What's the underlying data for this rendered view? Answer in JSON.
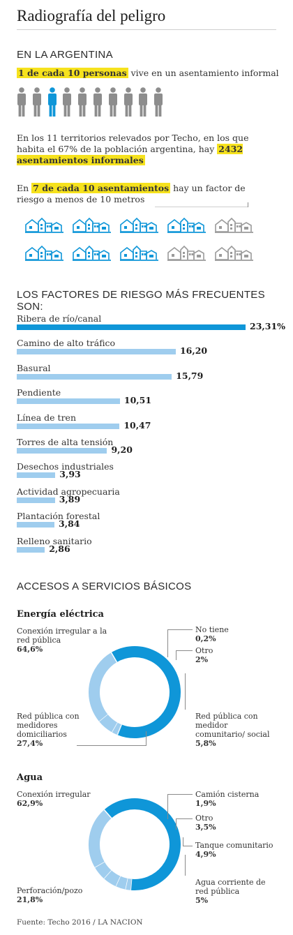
{
  "title": "Radiografía del peligro",
  "section_argentina": "EN LA ARGENTINA",
  "people": {
    "highlight": "1 de cada 10 personas",
    "rest": " vive en un asentamiento informal",
    "icon_count": 10,
    "highlighted_index": 2,
    "color_on": "#0f96d8",
    "color_off": "#8d8d8d"
  },
  "territory": {
    "text": "En los 11 territorios relevados por Techo, en los que habita el 67% de la población argentina, hay ",
    "highlight": "2432 asentamientos informales"
  },
  "settlements": {
    "prefix": "En ",
    "highlight": "7 de cada 10 asentamientos",
    "rest": " hay un factor de riesgo a menos de 10 metros",
    "icon_count": 10,
    "highlighted_count": 7,
    "color_on": "#0f96d8",
    "color_off": "#9a9a9a"
  },
  "section_factors": "LOS FACTORES DE RIESGO MÁS FRECUENTES SON:",
  "section_services": "ACCESOS A SERVICIOS BÁSICOS",
  "chart_data": [
    {
      "type": "bar",
      "orientation": "horizontal",
      "title": "LOS FACTORES DE RIESGO MÁS FRECUENTES SON:",
      "categories": [
        "Ribera de río/canal",
        "Camino de alto tráfico",
        "Basural",
        "Pendiente",
        "Línea de tren",
        "Torres de alta tensión",
        "Desechos industriales",
        "Actividad agropecuaria",
        "Plantación forestal",
        "Relleno sanitario"
      ],
      "values": [
        23.31,
        16.2,
        15.79,
        10.51,
        10.47,
        9.2,
        3.93,
        3.89,
        3.84,
        2.86
      ],
      "value_labels": [
        "23,31%",
        "16,20",
        "15,79",
        "10,51",
        "10,47",
        "9,20",
        "3,93",
        "3,89",
        "3,84",
        "2,86"
      ],
      "colors": {
        "highlight": "#0f96d8",
        "default": "#9fcdee"
      }
    },
    {
      "type": "pie",
      "style": "donut",
      "title": "Energía eléctrica",
      "slices": [
        {
          "label": "Conexión irregular a la red pública",
          "value": 64.6,
          "value_label": "64,6%",
          "color": "#0f96d8"
        },
        {
          "label": "No tiene",
          "value": 0.2,
          "value_label": "0,2%",
          "color": "#0f96d8"
        },
        {
          "label": "Otro",
          "value": 2,
          "value_label": "2%",
          "color": "#9fcdee"
        },
        {
          "label": "Red pública con medidor comunitario/ social",
          "value": 5.8,
          "value_label": "5,8%",
          "color": "#9fcdee"
        },
        {
          "label": "Red pública con medidores domiciliarios",
          "value": 27.4,
          "value_label": "27,4%",
          "color": "#9fcdee"
        }
      ]
    },
    {
      "type": "pie",
      "style": "donut",
      "title": "Agua",
      "slices": [
        {
          "label": "Conexión irregular",
          "value": 62.9,
          "value_label": "62,9%",
          "color": "#0f96d8"
        },
        {
          "label": "Camión cisterna",
          "value": 1.9,
          "value_label": "1,9%",
          "color": "#9fcdee"
        },
        {
          "label": "Otro",
          "value": 3.5,
          "value_label": "3,5%",
          "color": "#9fcdee"
        },
        {
          "label": "Tanque comunitario",
          "value": 4.9,
          "value_label": "4,9%",
          "color": "#9fcdee"
        },
        {
          "label": "Agua corriente de red pública",
          "value": 5,
          "value_label": "5%",
          "color": "#9fcdee"
        },
        {
          "label": "Perforación/pozo",
          "value": 21.8,
          "value_label": "21,8%",
          "color": "#9fcdee"
        }
      ]
    }
  ],
  "source": "Fuente: Techo 2016 / LA NACION"
}
